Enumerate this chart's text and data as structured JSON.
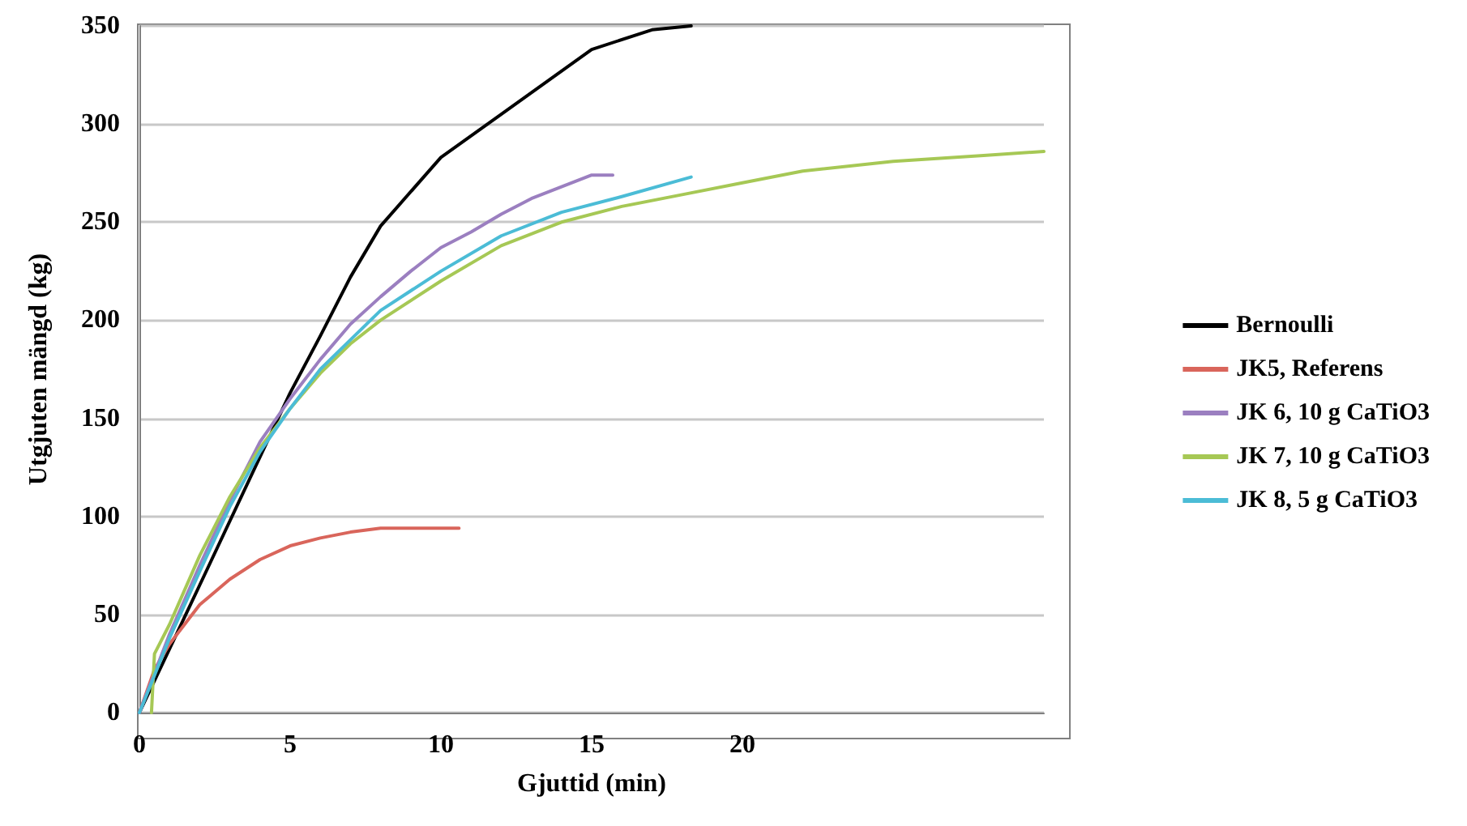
{
  "chart_data": {
    "type": "line",
    "xlabel": "Gjuttid (min)",
    "ylabel": "Utgjuten mängd (kg)",
    "xlim": [
      0,
      30
    ],
    "xticks": [
      0,
      5,
      10,
      15,
      20
    ],
    "ylim": [
      0,
      350
    ],
    "yticks": [
      0,
      50,
      100,
      150,
      200,
      250,
      300,
      350
    ],
    "grid": "y",
    "legend": "right",
    "marker": "none",
    "line_style": "solid",
    "series": [
      {
        "name": "Bernoulli",
        "color": "#000000",
        "x": [
          0,
          2,
          5,
          6,
          7,
          8,
          10,
          12,
          15,
          17,
          18.3
        ],
        "values": [
          0,
          65,
          163,
          192,
          222,
          248,
          283,
          305,
          338,
          348,
          350
        ]
      },
      {
        "name": "JK5, Referens",
        "color": "#d9655b",
        "x": [
          0,
          0.5,
          1,
          2,
          3,
          4,
          5,
          6,
          7,
          8,
          9,
          10.6
        ],
        "values": [
          0,
          22,
          35,
          55,
          68,
          78,
          85,
          89,
          92,
          94,
          94,
          94
        ]
      },
      {
        "name": "JK 6, 10 g CaTiO3",
        "color": "#9b7fc0",
        "x": [
          0,
          1,
          2,
          3,
          4,
          5,
          6,
          7,
          8,
          9,
          10,
          11,
          12,
          13,
          14,
          15,
          15.7
        ],
        "values": [
          0,
          40,
          75,
          108,
          138,
          160,
          180,
          198,
          212,
          225,
          237,
          245,
          254,
          262,
          268,
          274,
          274
        ]
      },
      {
        "name": "JK 7, 10 g CaTiO3",
        "color": "#a6c855",
        "x": [
          0.4,
          0.5,
          1,
          2,
          3,
          4,
          5,
          6,
          7,
          8,
          10,
          12,
          14,
          16,
          18,
          20,
          22,
          25,
          28,
          30
        ],
        "values": [
          0,
          30,
          45,
          80,
          110,
          135,
          155,
          173,
          188,
          200,
          220,
          238,
          250,
          258,
          264,
          270,
          276,
          281,
          284,
          286
        ]
      },
      {
        "name": "JK 8, 5 g CaTiO3",
        "color": "#4bbcd6",
        "x": [
          0,
          1,
          2,
          3,
          4,
          5,
          6,
          7,
          8,
          10,
          12,
          14,
          16,
          18.3
        ],
        "values": [
          0,
          38,
          72,
          105,
          133,
          155,
          175,
          190,
          205,
          225,
          243,
          255,
          263,
          273
        ]
      }
    ]
  }
}
